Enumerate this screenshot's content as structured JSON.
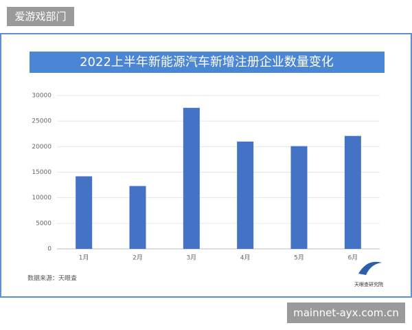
{
  "page": {
    "tag": "爱游戏部门",
    "url": "mainnet-ayx.com.cn"
  },
  "chart_data": {
    "type": "bar",
    "title": "2022上半年新能源汽车新增注册企业数量变化",
    "categories": [
      "1月",
      "2月",
      "3月",
      "4月",
      "5月",
      "6月"
    ],
    "values": [
      14200,
      12300,
      27600,
      21000,
      20100,
      22100
    ],
    "color": "#4472c4",
    "ylim": [
      0,
      30000
    ],
    "yticks": [
      0,
      5000,
      10000,
      15000,
      20000,
      25000,
      30000
    ],
    "grid": true,
    "source": "数据来源：天眼查",
    "logo_text": "天眼查研究院"
  }
}
